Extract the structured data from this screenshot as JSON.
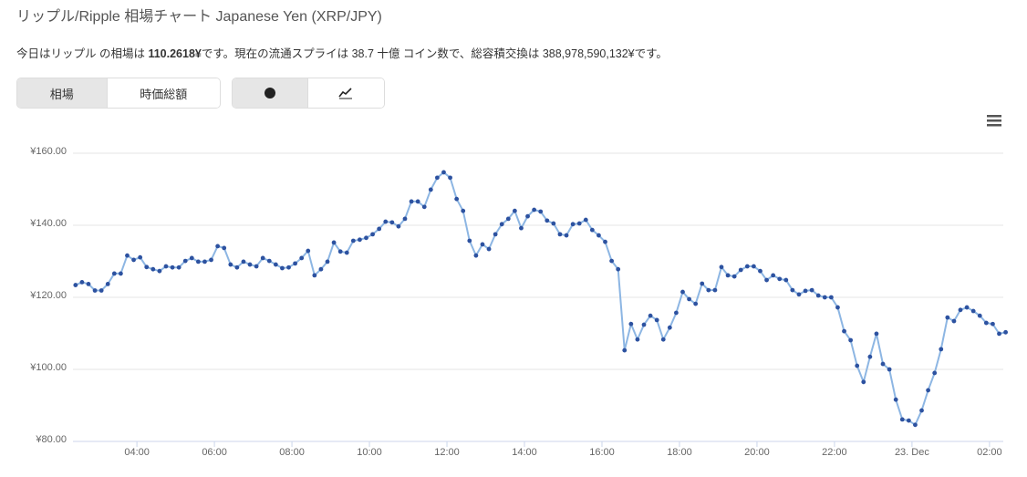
{
  "header": {
    "title": "リップル/Ripple 相場チャート Japanese Yen (XRP/JPY)"
  },
  "description": {
    "before": "今日はリップル の相場は ",
    "price": "110.2618¥",
    "after": "です。現在の流通スプライは 38.7 十億 コイン数で、総容積交換は 388,978,590,132¥です。"
  },
  "tabs": {
    "metric": [
      "相場",
      "時価総額"
    ]
  },
  "chart_data": {
    "type": "line",
    "x": [
      145,
      155,
      165,
      175,
      185,
      195,
      205,
      215,
      225,
      235,
      245,
      255,
      265,
      275,
      285,
      295,
      305,
      315,
      325,
      335,
      345,
      355,
      365,
      375,
      385,
      395,
      405,
      415,
      425,
      435,
      445,
      455,
      465,
      475,
      485,
      495,
      505,
      515,
      525,
      535,
      545,
      555,
      565,
      575,
      585,
      595,
      605,
      615,
      625,
      635,
      645,
      655,
      665,
      675,
      685,
      695,
      705,
      715,
      725,
      735,
      745,
      755,
      765,
      775,
      785,
      795,
      805,
      815,
      825,
      835,
      845,
      855,
      865,
      875,
      885,
      895,
      905,
      915,
      925,
      935,
      945,
      955,
      965,
      975,
      985,
      995,
      1005,
      1015,
      1025,
      1035,
      1045,
      1055,
      1065,
      1075,
      1085,
      1095,
      1105,
      1115,
      1125,
      1135,
      1145,
      1155,
      1165,
      1175,
      1185,
      1195,
      1205,
      1215,
      1225,
      1235,
      1245,
      1255,
      1265,
      1275,
      1285,
      1295,
      1305,
      1315,
      1325,
      1335,
      1345,
      1355,
      1365,
      1375,
      1385,
      1395,
      1405,
      1415,
      1425,
      1435,
      1445,
      1455,
      1465,
      1475,
      1485,
      1495,
      1505,
      1515,
      1525,
      1535,
      1545,
      1555,
      1565,
      1575,
      1585
    ],
    "series": [
      {
        "color": "#8db6e3",
        "marker_color": "#2d52a0",
        "values": [
          123.4,
          124.2,
          123.7,
          121.9,
          121.9,
          123.7,
          126.6,
          126.6,
          131.6,
          130.4,
          131.1,
          128.4,
          127.8,
          127.3,
          128.6,
          128.3,
          128.3,
          130.1,
          130.9,
          129.9,
          129.9,
          130.4,
          134.2,
          133.7,
          129.1,
          128.3,
          129.9,
          129.1,
          128.6,
          130.9,
          130.1,
          129.1,
          128.1,
          128.3,
          129.4,
          130.9,
          132.9,
          126.1,
          127.8,
          129.9,
          135.2,
          132.7,
          132.4,
          135.7,
          136.0,
          136.5,
          137.5,
          139.0,
          141.0,
          140.8,
          139.7,
          141.8,
          146.6,
          146.6,
          145.1,
          149.9,
          153.2,
          154.7,
          153.2,
          147.3,
          144.0,
          135.7,
          131.6,
          134.7,
          133.4,
          137.5,
          140.3,
          141.8,
          144.0,
          139.2,
          142.5,
          144.3,
          143.8,
          141.3,
          140.5,
          137.5,
          137.2,
          140.3,
          140.5,
          141.5,
          138.7,
          137.2,
          135.4,
          130.1,
          127.8,
          105.3,
          112.6,
          108.3,
          112.4,
          114.9,
          113.7,
          108.3,
          111.6,
          115.7,
          121.5,
          119.5,
          118.2,
          123.8,
          122.0,
          122.0,
          128.4,
          126.1,
          125.8,
          127.6,
          128.6,
          128.6,
          127.3,
          124.8,
          126.1,
          125.1,
          124.8,
          122.0,
          120.8,
          121.8,
          122.0,
          120.5,
          120.0,
          120.0,
          117.2,
          110.6,
          108.1,
          101.0,
          96.5,
          103.5,
          109.9,
          101.5,
          100.0,
          91.6,
          86.1,
          85.8,
          84.6,
          88.6,
          94.2,
          99.0,
          105.6,
          114.4,
          113.4,
          116.5,
          117.2,
          116.2,
          114.9,
          112.9,
          112.6,
          109.9,
          110.3
        ]
      }
    ],
    "xlim": [
      141,
      1587
    ],
    "xticks": [
      {
        "value": 240,
        "label": "04:00"
      },
      {
        "value": 360,
        "label": "06:00"
      },
      {
        "value": 480,
        "label": "08:00"
      },
      {
        "value": 600,
        "label": "10:00"
      },
      {
        "value": 720,
        "label": "12:00"
      },
      {
        "value": 840,
        "label": "14:00"
      },
      {
        "value": 960,
        "label": "16:00"
      },
      {
        "value": 1080,
        "label": "18:00"
      },
      {
        "value": 1200,
        "label": "20:00"
      },
      {
        "value": 1320,
        "label": "22:00"
      },
      {
        "value": 1440,
        "label": "23. Dec"
      },
      {
        "value": 1560,
        "label": "02:00"
      }
    ],
    "ylim": [
      80,
      160
    ],
    "yticks": [
      {
        "value": 80,
        "label": "¥80.00"
      },
      {
        "value": 100,
        "label": "¥100.00"
      },
      {
        "value": 120,
        "label": "¥120.00"
      },
      {
        "value": 140,
        "label": "¥140.00"
      },
      {
        "value": 160,
        "label": "¥160.00"
      }
    ],
    "grid": true
  }
}
